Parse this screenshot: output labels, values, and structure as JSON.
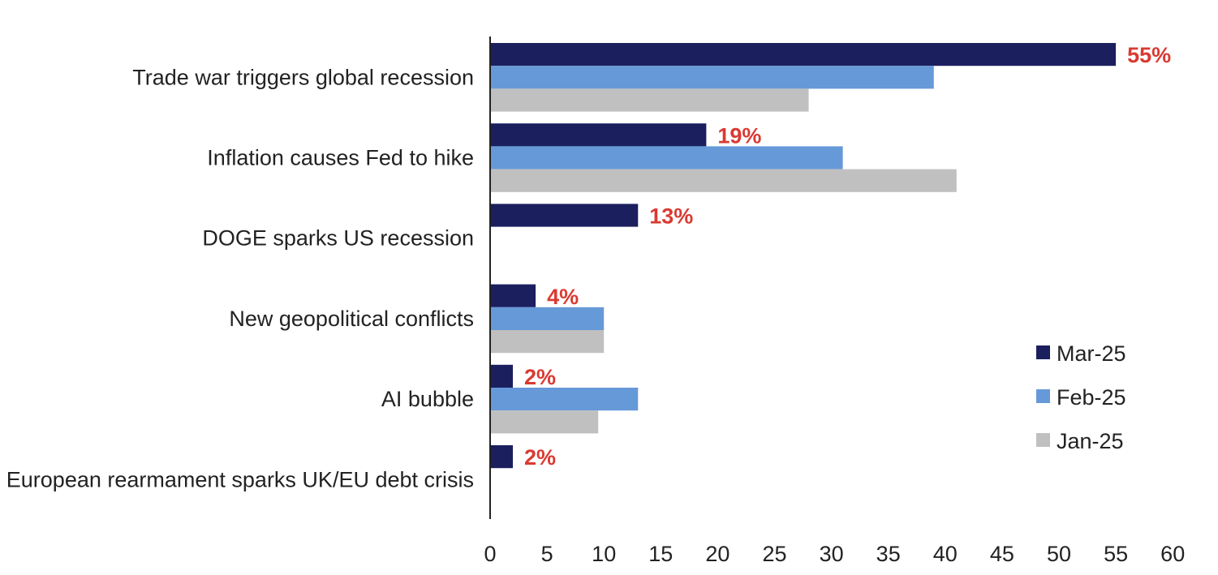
{
  "chart_data": {
    "type": "bar",
    "orientation": "horizontal",
    "title": "",
    "xlabel": "",
    "ylabel": "",
    "xlim": [
      0,
      60
    ],
    "x_ticks": [
      0,
      5,
      10,
      15,
      20,
      25,
      30,
      35,
      40,
      45,
      50,
      55,
      60
    ],
    "grid": false,
    "legend_position": "right",
    "categories": [
      "Trade war triggers global recession",
      "Inflation causes Fed to hike",
      "DOGE sparks US recession",
      "New geopolitical conflicts",
      "AI bubble",
      "European rearmament sparks UK/EU debt crisis"
    ],
    "series": [
      {
        "name": "Mar-25",
        "color": "#1b1f5e",
        "values": [
          55,
          19,
          13,
          4,
          2,
          2
        ]
      },
      {
        "name": "Feb-25",
        "color": "#6699d8",
        "values": [
          39,
          31,
          null,
          10,
          13,
          null
        ]
      },
      {
        "name": "Jan-25",
        "color": "#c0c0c0",
        "values": [
          28,
          41,
          null,
          10,
          9.5,
          null
        ]
      }
    ],
    "data_labels": [
      "55%",
      "19%",
      "13%",
      "4%",
      "2%",
      "2%"
    ],
    "data_label_color": "#d93a32"
  }
}
